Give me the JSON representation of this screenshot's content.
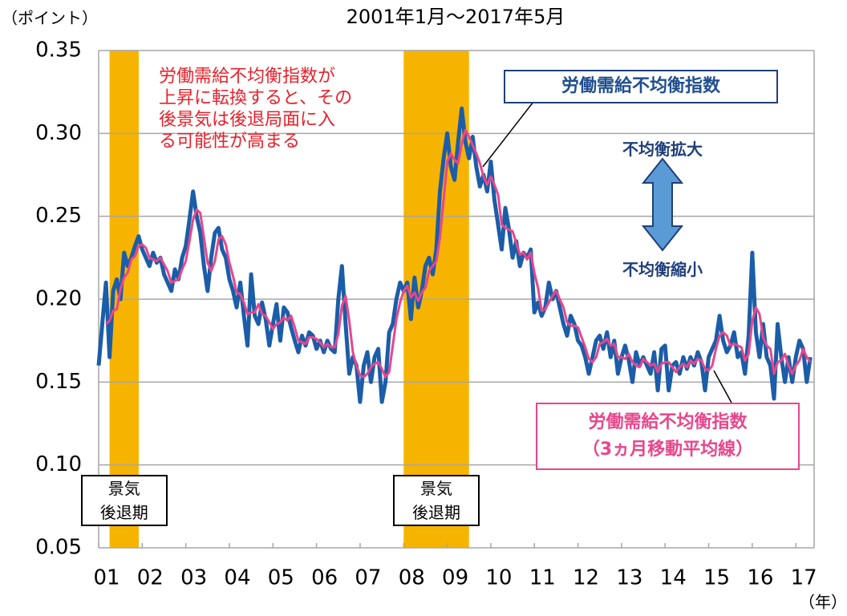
{
  "chart_data": {
    "type": "line",
    "title": "2001年1月～2017年5月",
    "y_unit": "（ポイント）",
    "x_unit": "（年）",
    "xlim": [
      2001,
      2017.42
    ],
    "ylim": [
      0.05,
      0.35
    ],
    "yticks": [
      {
        "value": 0.05,
        "label": "0.05"
      },
      {
        "value": 0.1,
        "label": "0.10"
      },
      0.15,
      {
        "value": 0.2,
        "label": "0.20"
      },
      0.25,
      {
        "value": 0.3,
        "label": "0.30"
      },
      0.35
    ],
    "xticks": [
      {
        "value": 2001,
        "label": "01"
      },
      {
        "value": 2002,
        "label": "02"
      },
      {
        "value": 2003,
        "label": "03"
      },
      {
        "value": 2004,
        "label": "04"
      },
      {
        "value": 2005,
        "label": "05"
      },
      {
        "value": 2006,
        "label": "06"
      },
      {
        "value": 2007,
        "label": "07"
      },
      {
        "value": 2008,
        "label": "08"
      },
      {
        "value": 2009,
        "label": "09"
      },
      {
        "value": 2010,
        "label": "10"
      },
      {
        "value": 2011,
        "label": "11"
      },
      {
        "value": 2012,
        "label": "12"
      },
      {
        "value": 2013,
        "label": "13"
      },
      {
        "value": 2014,
        "label": "14"
      },
      {
        "value": 2015,
        "label": "15"
      },
      {
        "value": 2016,
        "label": "16"
      },
      {
        "value": 2017,
        "label": "17"
      }
    ],
    "grid": true,
    "shaded_periods": [
      {
        "start": 2001.25,
        "end": 2001.92,
        "label": "景気\n後退期",
        "color": "#f6b400"
      },
      {
        "start": 2008.0,
        "end": 2009.5,
        "label": "景気\n後退期",
        "color": "#f6b400"
      }
    ],
    "annotations": {
      "note": "労働需給不均衡指数が\n上昇に転換すると、その\n後景気は後退局面に入\nる可能性が高まる",
      "up": "不均衡拡大",
      "down": "不均衡縮小"
    },
    "x": [
      2001,
      2001.083,
      2001.167,
      2001.25,
      2001.333,
      2001.417,
      2001.5,
      2001.583,
      2001.667,
      2001.75,
      2001.833,
      2001.917,
      2002,
      2002.083,
      2002.167,
      2002.25,
      2002.333,
      2002.417,
      2002.5,
      2002.583,
      2002.667,
      2002.75,
      2002.833,
      2002.917,
      2003,
      2003.083,
      2003.167,
      2003.25,
      2003.333,
      2003.417,
      2003.5,
      2003.583,
      2003.667,
      2003.75,
      2003.833,
      2003.917,
      2004,
      2004.083,
      2004.167,
      2004.25,
      2004.333,
      2004.417,
      2004.5,
      2004.583,
      2004.667,
      2004.75,
      2004.833,
      2004.917,
      2005,
      2005.083,
      2005.167,
      2005.25,
      2005.333,
      2005.417,
      2005.5,
      2005.583,
      2005.667,
      2005.75,
      2005.833,
      2005.917,
      2006,
      2006.083,
      2006.167,
      2006.25,
      2006.333,
      2006.417,
      2006.5,
      2006.583,
      2006.667,
      2006.75,
      2006.833,
      2006.917,
      2007,
      2007.083,
      2007.167,
      2007.25,
      2007.333,
      2007.417,
      2007.5,
      2007.583,
      2007.667,
      2007.75,
      2007.833,
      2007.917,
      2008,
      2008.083,
      2008.167,
      2008.25,
      2008.333,
      2008.417,
      2008.5,
      2008.583,
      2008.667,
      2008.75,
      2008.833,
      2008.917,
      2009,
      2009.083,
      2009.167,
      2009.25,
      2009.333,
      2009.417,
      2009.5,
      2009.583,
      2009.667,
      2009.75,
      2009.833,
      2009.917,
      2010,
      2010.083,
      2010.167,
      2010.25,
      2010.333,
      2010.417,
      2010.5,
      2010.583,
      2010.667,
      2010.75,
      2010.833,
      2010.917,
      2011,
      2011.083,
      2011.167,
      2011.25,
      2011.333,
      2011.417,
      2011.5,
      2011.583,
      2011.667,
      2011.75,
      2011.833,
      2011.917,
      2012,
      2012.083,
      2012.167,
      2012.25,
      2012.333,
      2012.417,
      2012.5,
      2012.583,
      2012.667,
      2012.75,
      2012.833,
      2012.917,
      2013,
      2013.083,
      2013.167,
      2013.25,
      2013.333,
      2013.417,
      2013.5,
      2013.583,
      2013.667,
      2013.75,
      2013.833,
      2013.917,
      2014,
      2014.083,
      2014.167,
      2014.25,
      2014.333,
      2014.417,
      2014.5,
      2014.583,
      2014.667,
      2014.75,
      2014.833,
      2014.917,
      2015,
      2015.083,
      2015.167,
      2015.25,
      2015.333,
      2015.417,
      2015.5,
      2015.583,
      2015.667,
      2015.75,
      2015.833,
      2015.917,
      2016,
      2016.083,
      2016.167,
      2016.25,
      2016.333,
      2016.417,
      2016.5,
      2016.583,
      2016.667,
      2016.75,
      2016.833,
      2016.917,
      2017,
      2017.083,
      2017.167,
      2017.25,
      2017.333
    ],
    "series": [
      {
        "name": "労働需給不均衡指数",
        "color": "#1b5da8",
        "width": 5,
        "values": [
          0.16,
          0.185,
          0.21,
          0.165,
          0.205,
          0.212,
          0.2,
          0.228,
          0.22,
          0.225,
          0.232,
          0.238,
          0.23,
          0.225,
          0.22,
          0.228,
          0.222,
          0.225,
          0.215,
          0.21,
          0.205,
          0.218,
          0.212,
          0.225,
          0.232,
          0.248,
          0.265,
          0.25,
          0.24,
          0.22,
          0.205,
          0.225,
          0.24,
          0.243,
          0.23,
          0.225,
          0.212,
          0.205,
          0.195,
          0.21,
          0.19,
          0.172,
          0.215,
          0.19,
          0.185,
          0.198,
          0.188,
          0.172,
          0.185,
          0.197,
          0.175,
          0.195,
          0.192,
          0.183,
          0.175,
          0.168,
          0.178,
          0.172,
          0.18,
          0.178,
          0.17,
          0.175,
          0.168,
          0.175,
          0.17,
          0.168,
          0.2,
          0.22,
          0.185,
          0.155,
          0.165,
          0.16,
          0.138,
          0.16,
          0.168,
          0.15,
          0.165,
          0.17,
          0.138,
          0.15,
          0.18,
          0.185,
          0.2,
          0.21,
          0.205,
          0.21,
          0.188,
          0.213,
          0.195,
          0.205,
          0.22,
          0.225,
          0.215,
          0.23,
          0.265,
          0.285,
          0.3,
          0.28,
          0.272,
          0.295,
          0.315,
          0.295,
          0.285,
          0.298,
          0.28,
          0.268,
          0.275,
          0.265,
          0.283,
          0.26,
          0.245,
          0.23,
          0.255,
          0.242,
          0.225,
          0.235,
          0.22,
          0.228,
          0.225,
          0.23,
          0.192,
          0.198,
          0.19,
          0.195,
          0.21,
          0.2,
          0.205,
          0.195,
          0.185,
          0.178,
          0.19,
          0.185,
          0.175,
          0.172,
          0.165,
          0.155,
          0.165,
          0.175,
          0.178,
          0.17,
          0.18,
          0.165,
          0.175,
          0.155,
          0.165,
          0.172,
          0.163,
          0.15,
          0.168,
          0.16,
          0.165,
          0.16,
          0.155,
          0.168,
          0.145,
          0.17,
          0.172,
          0.145,
          0.16,
          0.162,
          0.155,
          0.165,
          0.158,
          0.165,
          0.16,
          0.168,
          0.162,
          0.145,
          0.165,
          0.17,
          0.175,
          0.19,
          0.175,
          0.168,
          0.172,
          0.18,
          0.165,
          0.168,
          0.155,
          0.178,
          0.228,
          0.18,
          0.165,
          0.185,
          0.165,
          0.16,
          0.14,
          0.185,
          0.165,
          0.15,
          0.165,
          0.15,
          0.165,
          0.175,
          0.17,
          0.15,
          0.165
        ]
      },
      {
        "name": "労働需給不均衡指数\n（3ヵ月移動平均線）",
        "color": "#e8468c",
        "width": 3,
        "values": [
          null,
          null,
          0.185,
          0.187,
          0.193,
          0.194,
          0.206,
          0.213,
          0.216,
          0.224,
          0.226,
          0.232,
          0.233,
          0.231,
          0.225,
          0.224,
          0.223,
          0.225,
          0.221,
          0.217,
          0.21,
          0.211,
          0.212,
          0.218,
          0.223,
          0.235,
          0.248,
          0.254,
          0.252,
          0.237,
          0.222,
          0.217,
          0.223,
          0.236,
          0.238,
          0.233,
          0.222,
          0.214,
          0.204,
          0.203,
          0.198,
          0.191,
          0.192,
          0.192,
          0.197,
          0.191,
          0.19,
          0.186,
          0.182,
          0.185,
          0.186,
          0.189,
          0.187,
          0.19,
          0.183,
          0.175,
          0.174,
          0.173,
          0.177,
          0.177,
          0.176,
          0.174,
          0.171,
          0.173,
          0.171,
          0.171,
          0.179,
          0.196,
          0.202,
          0.187,
          0.168,
          0.16,
          0.154,
          0.153,
          0.155,
          0.159,
          0.161,
          0.162,
          0.158,
          0.153,
          0.156,
          0.172,
          0.188,
          0.198,
          0.205,
          0.208,
          0.201,
          0.204,
          0.199,
          0.204,
          0.207,
          0.217,
          0.22,
          0.223,
          0.237,
          0.26,
          0.283,
          0.288,
          0.284,
          0.282,
          0.294,
          0.302,
          0.298,
          0.293,
          0.288,
          0.282,
          0.274,
          0.269,
          0.274,
          0.269,
          0.263,
          0.245,
          0.243,
          0.242,
          0.241,
          0.234,
          0.227,
          0.228,
          0.224,
          0.228,
          0.216,
          0.207,
          0.193,
          0.194,
          0.198,
          0.202,
          0.205,
          0.2,
          0.195,
          0.186,
          0.184,
          0.184,
          0.183,
          0.177,
          0.171,
          0.164,
          0.162,
          0.165,
          0.173,
          0.174,
          0.176,
          0.172,
          0.173,
          0.165,
          0.165,
          0.164,
          0.167,
          0.162,
          0.16,
          0.159,
          0.164,
          0.162,
          0.16,
          0.161,
          0.156,
          0.161,
          0.162,
          0.162,
          0.159,
          0.156,
          0.159,
          0.161,
          0.159,
          0.163,
          0.161,
          0.164,
          0.163,
          0.158,
          0.157,
          0.16,
          0.17,
          0.178,
          0.18,
          0.178,
          0.172,
          0.173,
          0.172,
          0.171,
          0.163,
          0.167,
          0.187,
          0.195,
          0.191,
          0.177,
          0.172,
          0.17,
          0.155,
          0.162,
          0.163,
          0.167,
          0.16,
          0.155,
          0.16,
          0.163,
          0.17,
          0.165,
          0.162
        ]
      }
    ]
  }
}
